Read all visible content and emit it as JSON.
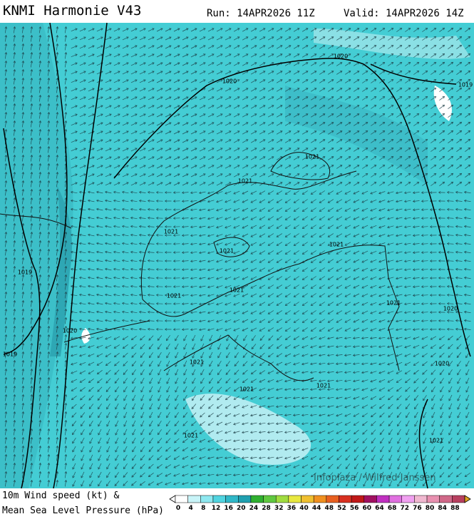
{
  "header": {
    "title": "KNMI Harmonie V43",
    "run": "Run: 14APR2026 11Z",
    "valid": "Valid: 14APR2026 14Z"
  },
  "isobar_labels": [
    "1020",
    "1020",
    "1019",
    "1021",
    "1021",
    "1021",
    "1021",
    "1021",
    "1021",
    "1019",
    "1020",
    "1019",
    "1021",
    "1021",
    "1021",
    "1021",
    "1021",
    "1020",
    "1020",
    "1021",
    "1021"
  ],
  "credit": "Infoplaza / Wilfred Janssen",
  "legend": {
    "line1": "10m Wind speed (kt) &",
    "line2": "Mean Sea Level Pressure (hPa)",
    "scale": [
      {
        "value": 0,
        "color": "#ffffff"
      },
      {
        "value": 4,
        "color": "#c8f4f8"
      },
      {
        "value": 8,
        "color": "#8ee8f0"
      },
      {
        "value": 12,
        "color": "#50d4e0"
      },
      {
        "value": 16,
        "color": "#30b8c8"
      },
      {
        "value": 20,
        "color": "#20a0b0"
      },
      {
        "value": 24,
        "color": "#30b030"
      },
      {
        "value": 28,
        "color": "#60c840"
      },
      {
        "value": 32,
        "color": "#a0dc40"
      },
      {
        "value": 36,
        "color": "#e8e840"
      },
      {
        "value": 40,
        "color": "#f0c030"
      },
      {
        "value": 44,
        "color": "#f09020"
      },
      {
        "value": 48,
        "color": "#e86020"
      },
      {
        "value": 52,
        "color": "#d83020"
      },
      {
        "value": 56,
        "color": "#c01818"
      },
      {
        "value": 60,
        "color": "#a01060"
      },
      {
        "value": 64,
        "color": "#c030c0"
      },
      {
        "value": 68,
        "color": "#e070e0"
      },
      {
        "value": 72,
        "color": "#f0a0f0"
      },
      {
        "value": 76,
        "color": "#f0b8d0"
      },
      {
        "value": 80,
        "color": "#e890b0"
      },
      {
        "value": 84,
        "color": "#d06888"
      },
      {
        "value": 88,
        "color": "#b84060"
      }
    ]
  }
}
